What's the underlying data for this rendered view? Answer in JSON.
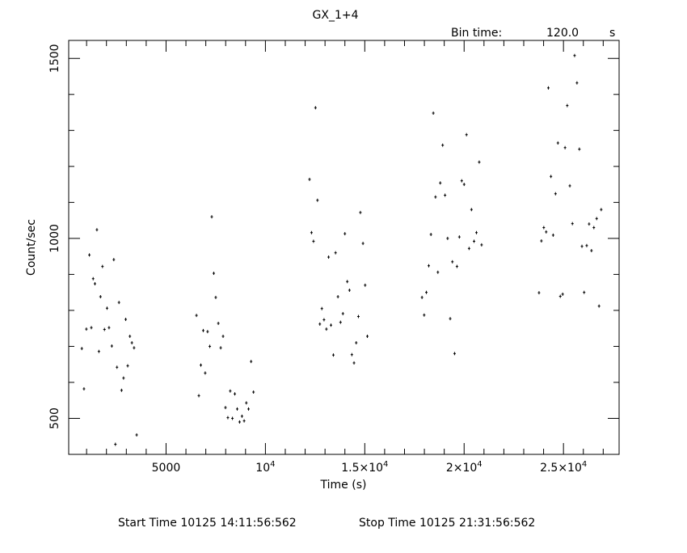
{
  "chart_data": {
    "type": "scatter",
    "title": "GX_1+4",
    "bin_time_label": "Bin time:",
    "bin_time_value": "120.0",
    "bin_time_unit": "s",
    "xlabel": "Time (s)",
    "ylabel": "Count/sec",
    "xlim": [
      100,
      27800
    ],
    "ylim": [
      400,
      1550
    ],
    "x_ticks": [
      {
        "value": 5000,
        "label": "5000"
      },
      {
        "value": 10000,
        "label": "10",
        "exp": "4"
      },
      {
        "value": 15000,
        "label": "1.5×10",
        "exp": "4"
      },
      {
        "value": 20000,
        "label": "2×10",
        "exp": "4"
      },
      {
        "value": 25000,
        "label": "2.5×10",
        "exp": "4"
      }
    ],
    "y_ticks": [
      {
        "value": 500,
        "label": "500"
      },
      {
        "value": 1000,
        "label": "1000"
      },
      {
        "value": 1500,
        "label": "1500"
      }
    ],
    "grid": false,
    "footer": {
      "start": "Start Time 10125 14:11:56:562",
      "stop": "Stop Time 10125 21:31:56:562"
    },
    "series": [
      {
        "x": [
          760,
          870,
          990,
          1140,
          1240,
          1330,
          1420,
          1520,
          1620,
          1700,
          1800,
          1900,
          2030,
          2130,
          2270,
          2370,
          2450,
          2530,
          2630,
          2760,
          2860,
          2970,
          3070,
          3180,
          3280,
          3390,
          3520,
          6530,
          6650,
          6750,
          6870,
          6970,
          7090,
          7200,
          7300,
          7400,
          7500,
          7630,
          7750,
          7870,
          7990,
          8110,
          8230,
          8340,
          8460,
          8580,
          8700,
          8820,
          8930,
          9040,
          9150,
          9280,
          9400,
          12220,
          12320,
          12420,
          12520,
          12620,
          12740,
          12840,
          12950,
          13070,
          13180,
          13300,
          13420,
          13530,
          13650,
          13780,
          13900,
          14000,
          14120,
          14230,
          14350,
          14460,
          14570,
          14680,
          14780,
          14910,
          15020,
          15130,
          17880,
          17990,
          18100,
          18220,
          18330,
          18450,
          18560,
          18680,
          18800,
          18920,
          19040,
          19170,
          19300,
          19410,
          19520,
          19640,
          19760,
          19880,
          20000,
          20120,
          20250,
          20370,
          20500,
          20620,
          20760,
          20880,
          23770,
          23890,
          24010,
          24130,
          24240,
          24370,
          24480,
          24600,
          24720,
          24840,
          24960,
          25080,
          25190,
          25320,
          25450,
          25560,
          25680,
          25800,
          25930,
          26040,
          26170,
          26290,
          26410,
          26530,
          26670,
          26790,
          26900
        ],
        "y": [
          694,
          582,
          748,
          954,
          752,
          888,
          874,
          1024,
          686,
          838,
          922,
          747,
          806,
          752,
          701,
          941,
          428,
          642,
          822,
          578,
          612,
          775,
          646,
          728,
          710,
          696,
          454,
          786,
          563,
          648,
          744,
          626,
          741,
          700,
          1060,
          903,
          836,
          764,
          696,
          728,
          530,
          502,
          576,
          500,
          568,
          526,
          490,
          506,
          493,
          543,
          526,
          658,
          573,
          1164,
          1016,
          992,
          1363,
          1106,
          762,
          805,
          774,
          748,
          948,
          759,
          676,
          960,
          838,
          767,
          791,
          1013,
          880,
          856,
          677,
          654,
          710,
          783,
          1072,
          986,
          870,
          728,
          836,
          787,
          850,
          924,
          1011,
          1348,
          1115,
          906,
          1154,
          1259,
          1120,
          1000,
          777,
          935,
          680,
          922,
          1004,
          1160,
          1150,
          1288,
          972,
          1080,
          992,
          1016,
          1212,
          982,
          849,
          993,
          1030,
          1018,
          1418,
          1172,
          1009,
          1124,
          1265,
          839,
          845,
          1252,
          1369,
          1146,
          1041,
          1508,
          1432,
          1248,
          978,
          850,
          980,
          1040,
          966,
          1030,
          1055,
          812,
          1080
        ]
      }
    ]
  }
}
